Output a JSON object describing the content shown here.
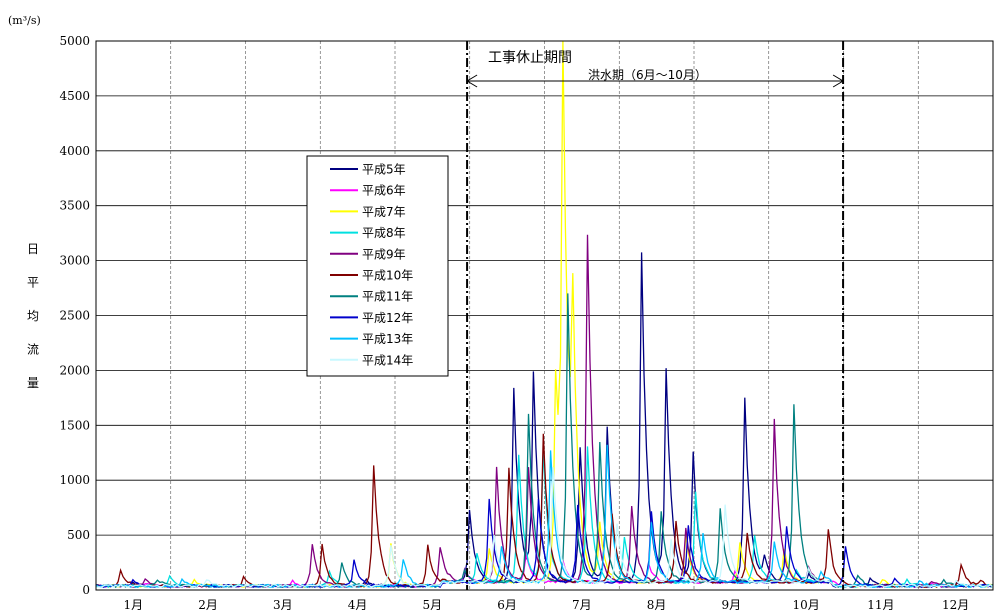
{
  "chart_data": {
    "type": "line",
    "unit": "(m³/s)",
    "ylabel": "日平均流量",
    "ylim": [
      0,
      5000
    ],
    "yticks": [
      0,
      500,
      1000,
      1500,
      2000,
      2500,
      3000,
      3500,
      4000,
      4500,
      5000
    ],
    "x_domain_days": [
      0,
      365
    ],
    "months": [
      "1月",
      "2月",
      "3月",
      "4月",
      "5月",
      "6月",
      "7月",
      "8月",
      "9月",
      "10月",
      "11月",
      "12月"
    ],
    "grid": true,
    "legend_position": "upper-left-center",
    "annotations": {
      "suspension_label": "工事休止期間",
      "flood_label": "洪水期（6月～10月）",
      "suspension_start_day": 151,
      "suspension_end_day": 304
    },
    "series": [
      {
        "name": "平成5年",
        "color": "#000080",
        "peaks": [
          [
            15,
            40
          ],
          [
            110,
            60
          ],
          [
            152,
            650
          ],
          [
            170,
            1780
          ],
          [
            178,
            1880
          ],
          [
            197,
            1230
          ],
          [
            208,
            1420
          ],
          [
            222,
            3000
          ],
          [
            232,
            1920
          ],
          [
            243,
            1180
          ],
          [
            264,
            1680
          ],
          [
            272,
            200
          ],
          [
            290,
            80
          ],
          [
            315,
            60
          ],
          [
            350,
            40
          ]
        ]
      },
      {
        "name": "平成6年",
        "color": "#ff00ff",
        "peaks": [
          [
            20,
            30
          ],
          [
            80,
            40
          ],
          [
            150,
            120
          ],
          [
            175,
            250
          ],
          [
            190,
            200
          ],
          [
            225,
            160
          ],
          [
            260,
            100
          ],
          [
            300,
            50
          ],
          [
            340,
            30
          ]
        ]
      },
      {
        "name": "平成7年",
        "color": "#ffff00",
        "peaks": [
          [
            40,
            50
          ],
          [
            120,
            380
          ],
          [
            160,
            300
          ],
          [
            187,
            1830
          ],
          [
            190,
            4540
          ],
          [
            194,
            2000
          ],
          [
            205,
            520
          ],
          [
            240,
            420
          ],
          [
            262,
            350
          ],
          [
            280,
            300
          ],
          [
            320,
            60
          ]
        ]
      },
      {
        "name": "平成8年",
        "color": "#00e0e0",
        "peaks": [
          [
            30,
            80
          ],
          [
            95,
            120
          ],
          [
            155,
            260
          ],
          [
            172,
            1170
          ],
          [
            182,
            1200
          ],
          [
            200,
            1230
          ],
          [
            215,
            420
          ],
          [
            244,
            830
          ],
          [
            268,
            420
          ],
          [
            285,
            120
          ],
          [
            330,
            60
          ]
        ]
      },
      {
        "name": "平成9年",
        "color": "#800080",
        "peaks": [
          [
            20,
            70
          ],
          [
            88,
            380
          ],
          [
            140,
            340
          ],
          [
            163,
            1040
          ],
          [
            176,
            1050
          ],
          [
            200,
            3160
          ],
          [
            218,
            700
          ],
          [
            240,
            500
          ],
          [
            276,
            1480
          ],
          [
            290,
            130
          ],
          [
            340,
            50
          ]
        ]
      },
      {
        "name": "平成10年",
        "color": "#800000",
        "peaks": [
          [
            10,
            140
          ],
          [
            60,
            80
          ],
          [
            92,
            370
          ],
          [
            113,
            1100
          ],
          [
            135,
            370
          ],
          [
            168,
            1050
          ],
          [
            182,
            1350
          ],
          [
            210,
            620
          ],
          [
            236,
            560
          ],
          [
            265,
            450
          ],
          [
            298,
            480
          ],
          [
            352,
            200
          ],
          [
            360,
            40
          ]
        ]
      },
      {
        "name": "平成11年",
        "color": "#008080",
        "peaks": [
          [
            25,
            60
          ],
          [
            100,
            200
          ],
          [
            150,
            110
          ],
          [
            176,
            1530
          ],
          [
            192,
            2640
          ],
          [
            205,
            1260
          ],
          [
            230,
            640
          ],
          [
            254,
            680
          ],
          [
            284,
            1630
          ],
          [
            310,
            100
          ],
          [
            345,
            50
          ]
        ]
      },
      {
        "name": "平成12年",
        "color": "#0000cc",
        "peaks": [
          [
            15,
            60
          ],
          [
            105,
            230
          ],
          [
            160,
            760
          ],
          [
            180,
            760
          ],
          [
            196,
            700
          ],
          [
            226,
            650
          ],
          [
            241,
            520
          ],
          [
            281,
            510
          ],
          [
            305,
            360
          ],
          [
            325,
            60
          ]
        ]
      },
      {
        "name": "平成13年",
        "color": "#00c0ff",
        "peaks": [
          [
            35,
            70
          ],
          [
            125,
            250
          ],
          [
            165,
            320
          ],
          [
            185,
            1200
          ],
          [
            208,
            1260
          ],
          [
            226,
            540
          ],
          [
            247,
            440
          ],
          [
            276,
            380
          ],
          [
            295,
            100
          ],
          [
            335,
            50
          ]
        ]
      },
      {
        "name": "平成14年",
        "color": "#c8f8ff",
        "peaks": [
          [
            45,
            60
          ],
          [
            120,
            380
          ],
          [
            162,
            420
          ],
          [
            186,
            1050
          ],
          [
            212,
            540
          ],
          [
            234,
            380
          ],
          [
            256,
            700
          ],
          [
            290,
            120
          ],
          [
            350,
            40
          ]
        ]
      }
    ]
  }
}
